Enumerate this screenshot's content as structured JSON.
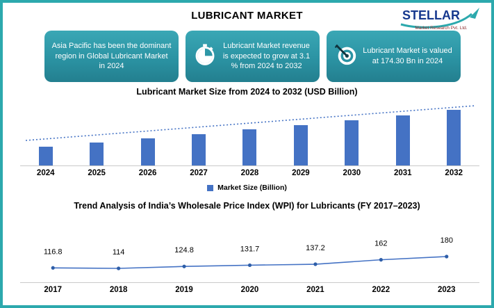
{
  "page": {
    "title": "LUBRICANT MARKET",
    "border_color": "#2ca9ad"
  },
  "logo": {
    "name": "STELLAR",
    "subtitle": "Market Research Pvt. Ltd.",
    "text_color": "#16388e",
    "accent_color": "#2ca9ad"
  },
  "highlights": [
    {
      "icon": "",
      "text": "Asia Pacific has been the dominant region in Global Lubricant Market in 2024"
    },
    {
      "icon": "stopwatch-icon",
      "text": "Lubricant Market revenue is expected to grow at 3.1 % from 2024 to 2032"
    },
    {
      "icon": "target-icon",
      "text": "Lubricant Market is valued at 174.30 Bn in 2024"
    }
  ],
  "chart_data": [
    {
      "type": "bar",
      "title": "Lubricant Market Size from 2024 to 2032 (USD Billion)",
      "categories": [
        "2024",
        "2025",
        "2026",
        "2027",
        "2028",
        "2029",
        "2030",
        "2031",
        "2032"
      ],
      "values": [
        174.3,
        179.7,
        185.27,
        191.02,
        196.94,
        203.04,
        209.34,
        215.83,
        222.52
      ],
      "legend_label": "Market Size (Billion)",
      "bar_color": "#4472C4",
      "trendline": true,
      "ylim": [
        150,
        230
      ],
      "xlabel": "",
      "ylabel": ""
    },
    {
      "type": "line",
      "title": "Trend Analysis of India’s Wholesale Price Index (WPI) for Lubricants (FY 2017–2023)",
      "categories": [
        "2017",
        "2018",
        "2019",
        "2020",
        "2021",
        "2022",
        "2023"
      ],
      "values": [
        116.8,
        114,
        124.8,
        131.7,
        137.2,
        162,
        180
      ],
      "labels": [
        "116.8",
        "114",
        "124.8",
        "131.7",
        "137.2",
        "162",
        "180"
      ],
      "line_color": "#4472C4",
      "ylim": [
        110,
        190
      ],
      "xlabel": "",
      "ylabel": ""
    }
  ]
}
